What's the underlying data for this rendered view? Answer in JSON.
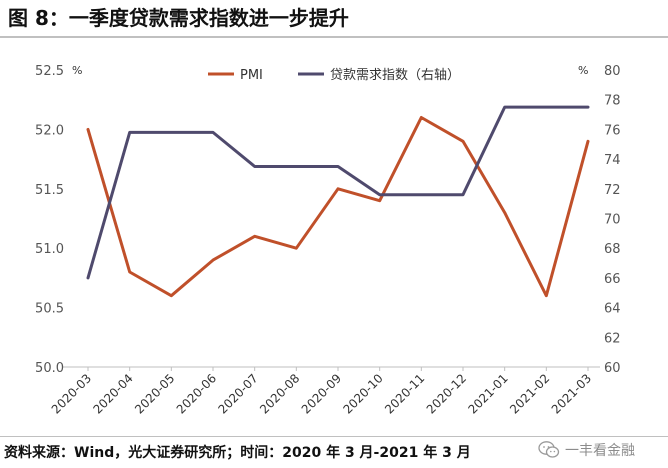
{
  "header": {
    "title": "图 8：一季度贷款需求指数进一步提升"
  },
  "footer": {
    "source": "资料来源：Wind，光大证券研究所；时间：2020 年 3 月-2021 年 3 月",
    "watermark": "一丰看金融",
    "watermark_icon": "wechat-icon"
  },
  "colors": {
    "pmi": "#c0502a",
    "loan_demand": "#4f4a6d"
  },
  "chart_data": {
    "type": "line",
    "categories": [
      "2020-03",
      "2020-04",
      "2020-05",
      "2020-06",
      "2020-07",
      "2020-08",
      "2020-09",
      "2020-10",
      "2020-11",
      "2020-12",
      "2021-01",
      "2021-02",
      "2021-03"
    ],
    "series": [
      {
        "name": "PMI",
        "axis": "left",
        "values": [
          52.0,
          50.8,
          50.6,
          50.9,
          51.1,
          51.0,
          51.5,
          51.4,
          52.1,
          51.9,
          51.3,
          50.6,
          51.9
        ]
      },
      {
        "name": "贷款需求指数（右轴）",
        "axis": "right",
        "values": [
          66.0,
          75.8,
          75.8,
          75.8,
          73.5,
          73.5,
          73.5,
          71.6,
          71.6,
          71.6,
          77.5,
          77.5,
          77.5
        ]
      }
    ],
    "y_left": {
      "unit": "%",
      "lim": [
        50.0,
        52.5
      ],
      "ticks": [
        "50.0",
        "50.5",
        "51.0",
        "51.5",
        "52.0",
        "52.5"
      ]
    },
    "y_right": {
      "unit": "%",
      "lim": [
        60,
        80
      ],
      "ticks": [
        "60",
        "62",
        "64",
        "66",
        "68",
        "70",
        "72",
        "74",
        "76",
        "78",
        "80"
      ]
    },
    "legend": "top-center",
    "grid": false
  }
}
